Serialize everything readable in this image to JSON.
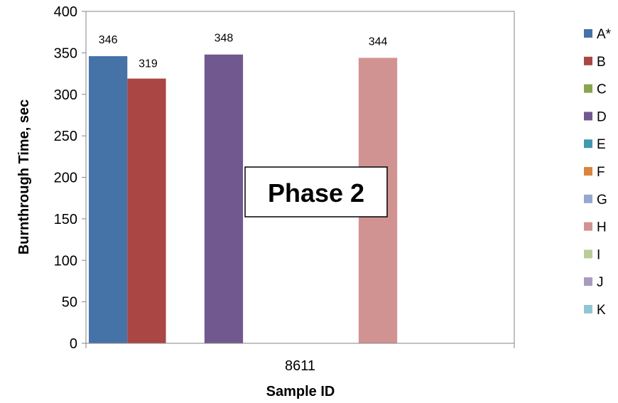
{
  "chart_data": {
    "type": "bar",
    "title": "",
    "xlabel": "Sample ID",
    "ylabel": "Burnthrough Time, sec",
    "categories": [
      "8611"
    ],
    "ylim": [
      0,
      400
    ],
    "yticks": [
      0,
      50,
      100,
      150,
      200,
      250,
      300,
      350,
      400
    ],
    "grid": false,
    "legend_position": "right",
    "annotation": "Phase 2",
    "series": [
      {
        "name": "A*",
        "color": "#4572A7",
        "values": [
          346
        ],
        "label": "346"
      },
      {
        "name": "B",
        "color": "#AA4643",
        "values": [
          319
        ],
        "label": "319"
      },
      {
        "name": "C",
        "color": "#89A54E",
        "values": [
          null
        ],
        "label": ""
      },
      {
        "name": "D",
        "color": "#71588F",
        "values": [
          348
        ],
        "label": "348"
      },
      {
        "name": "E",
        "color": "#4198AF",
        "values": [
          null
        ],
        "label": ""
      },
      {
        "name": "F",
        "color": "#DB843D",
        "values": [
          null
        ],
        "label": ""
      },
      {
        "name": "G",
        "color": "#93A9CF",
        "values": [
          null
        ],
        "label": ""
      },
      {
        "name": "H",
        "color": "#D19392",
        "values": [
          344
        ],
        "label": "344"
      },
      {
        "name": "I",
        "color": "#B9CD96",
        "values": [
          null
        ],
        "label": ""
      },
      {
        "name": "J",
        "color": "#A99BBD",
        "values": [
          null
        ],
        "label": ""
      },
      {
        "name": "K",
        "color": "#92C5D4",
        "values": [
          null
        ],
        "label": ""
      }
    ]
  }
}
